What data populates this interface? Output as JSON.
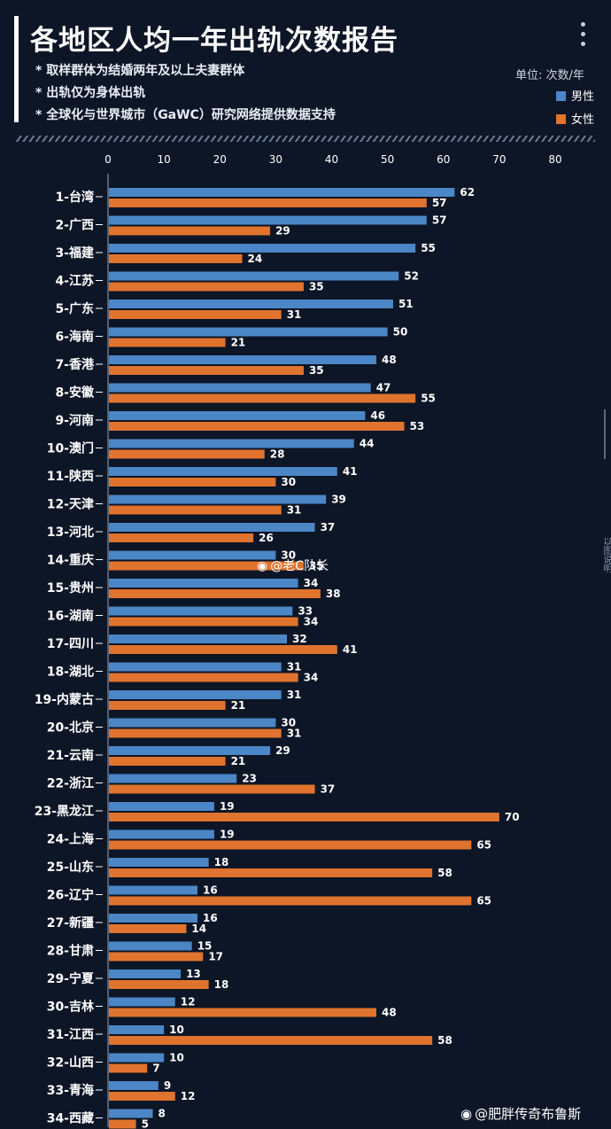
{
  "header": {
    "title": "各地区人均一年出轨次数报告",
    "notes": [
      "* 取样群体为结婚两年及以上夫妻群体",
      "* 出轨仅为身体出轨",
      "* 全球化与世界城市（GaWC）研究网络提供数据支持"
    ]
  },
  "unit_label": "单位: 次数/年",
  "watermarks": {
    "center": "@老C队长",
    "bottom": "@肥胖传奇布鲁斯"
  },
  "side_text": "以图说明",
  "icons": {
    "menu": "more-vertical-icon",
    "weibo": "weibo-icon"
  },
  "colors": {
    "male": "#4b86c6",
    "female": "#e0732d",
    "background": "#0d1626"
  },
  "chart_data": {
    "type": "bar",
    "orientation": "horizontal",
    "title": "各地区人均一年出轨次数报告",
    "xlim": [
      0,
      80
    ],
    "x_ticks": [
      0,
      10,
      20,
      30,
      40,
      50,
      60,
      70,
      80
    ],
    "x_tick_labels": [
      "0",
      "10",
      "20",
      "30",
      "40",
      "50",
      "60",
      "70",
      "80"
    ],
    "grid": false,
    "legend_position": "top-right",
    "categories": [
      "1-台湾",
      "2-广西",
      "3-福建",
      "4-江苏",
      "5-广东",
      "6-海南",
      "7-香港",
      "8-安徽",
      "9-河南",
      "10-澳门",
      "11-陕西",
      "12-天津",
      "13-河北",
      "14-重庆",
      "15-贵州",
      "16-湖南",
      "17-四川",
      "18-湖北",
      "19-内蒙古",
      "20-北京",
      "21-云南",
      "22-浙江",
      "23-黑龙江",
      "24-上海",
      "25-山东",
      "26-辽宁",
      "27-新疆",
      "28-甘肃",
      "29-宁夏",
      "30-吉林",
      "31-江西",
      "32-山西",
      "33-青海",
      "34-西藏"
    ],
    "series": [
      {
        "name": "男性",
        "color": "#4b86c6",
        "values": [
          62,
          57,
          55,
          52,
          51,
          50,
          48,
          47,
          46,
          44,
          41,
          39,
          37,
          30,
          34,
          33,
          32,
          31,
          31,
          30,
          29,
          23,
          19,
          19,
          18,
          16,
          16,
          15,
          13,
          12,
          10,
          10,
          9,
          8
        ]
      },
      {
        "name": "女性",
        "color": "#e0732d",
        "values": [
          57,
          29,
          24,
          35,
          31,
          21,
          35,
          55,
          53,
          28,
          30,
          31,
          26,
          35,
          38,
          34,
          41,
          34,
          21,
          31,
          21,
          37,
          70,
          65,
          58,
          65,
          14,
          17,
          18,
          48,
          58,
          7,
          12,
          5
        ]
      }
    ]
  }
}
